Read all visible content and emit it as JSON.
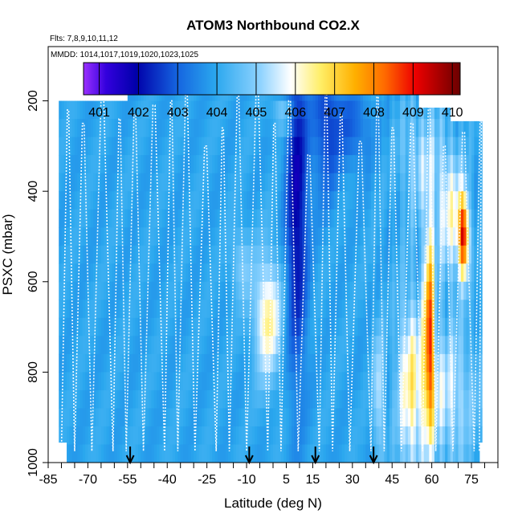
{
  "chart_data": {
    "type": "heatmap",
    "title": "ATOM3 Northbound CO2.X",
    "subtitle_flights": "Flts: 7,8,9,10,11,12",
    "subtitle_dates": "MMDD: 1014,1017,1019,1020,1023,1025",
    "xlabel": "Latitude (deg N)",
    "ylabel": "PSXC (mbar)",
    "xlim": [
      -85,
      85
    ],
    "ylim": [
      1000,
      80
    ],
    "x_tick_labels": [
      "-85",
      "-70",
      "-55",
      "-40",
      "-25",
      "-10",
      "5",
      "15",
      "30",
      "45",
      "60",
      "75"
    ],
    "y_tick_labels": [
      "200",
      "400",
      "600",
      "800",
      "1000"
    ],
    "colorbar": {
      "range": [
        400.6,
        410.2
      ],
      "tick_labels": [
        "401",
        "402",
        "403",
        "404",
        "405",
        "406",
        "407",
        "408",
        "409",
        "410"
      ]
    },
    "arrows_latitude": [
      -54,
      -9,
      16,
      38
    ],
    "colors": {
      "background_co2": "#2aa7ee",
      "low_co2": "#0000aa",
      "high_co2": "#aa0000",
      "flight_track": "#ffffff"
    },
    "series": [
      {
        "lat_range": [
          -80,
          -40
        ],
        "level": "uniform ~403.8"
      },
      {
        "lat_range": [
          -7,
          5
        ],
        "level": "lower troposphere 406-409"
      },
      {
        "lat_range": [
          5,
          15
        ],
        "level": "upper troposphere ~401.5"
      },
      {
        "lat_range": [
          55,
          78
        ],
        "level": "mixed 403-410"
      }
    ]
  }
}
